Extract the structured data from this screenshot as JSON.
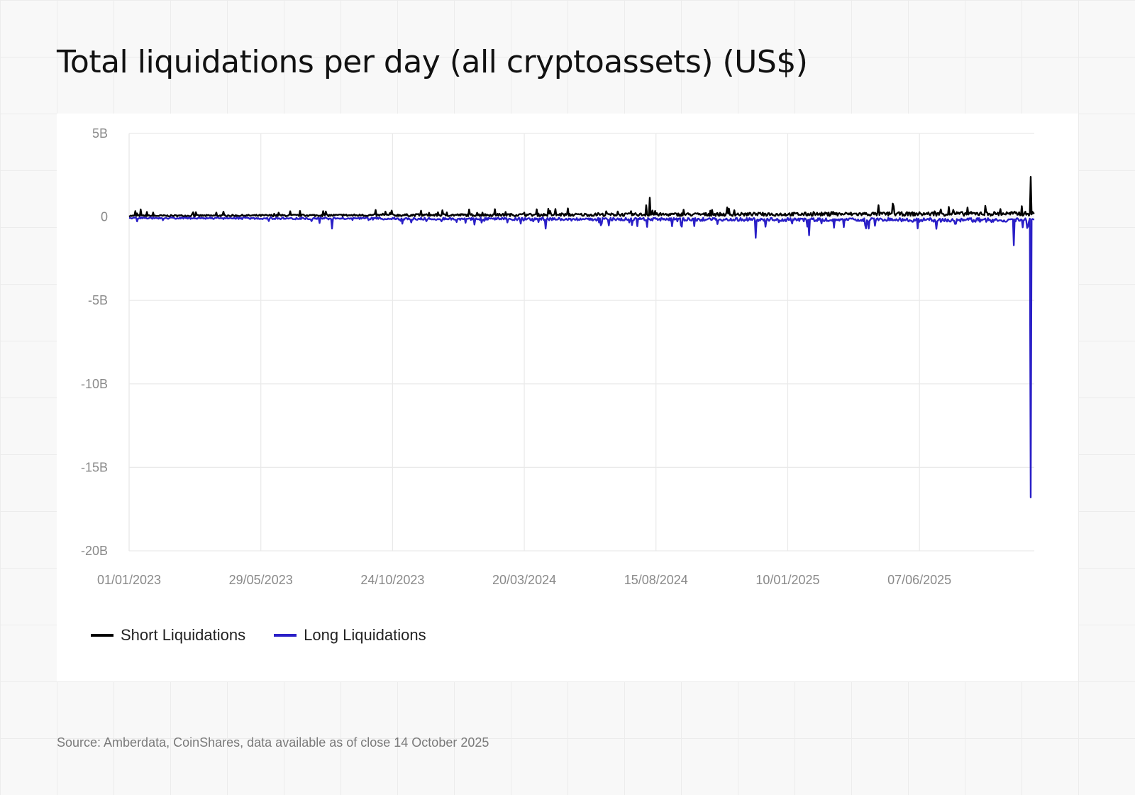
{
  "title": "Total liquidations per day (all cryptoassets) (US$)",
  "source": "Source: Amberdata, CoinShares, data available as of close 14 October 2025",
  "chart_data": {
    "type": "line",
    "title": "Total liquidations per day (all cryptoassets) (US$)",
    "xlabel": "",
    "ylabel": "",
    "x_range": [
      "01/01/2023",
      "14/10/2025"
    ],
    "ylim": [
      -20000000000,
      5000000000
    ],
    "y_ticks": [
      {
        "value": 5000000000,
        "label": "5B"
      },
      {
        "value": 0,
        "label": "0"
      },
      {
        "value": -5000000000,
        "label": "-5B"
      },
      {
        "value": -10000000000,
        "label": "-10B"
      },
      {
        "value": -15000000000,
        "label": "-15B"
      },
      {
        "value": -20000000000,
        "label": "-20B"
      }
    ],
    "x_ticks": [
      "01/01/2023",
      "29/05/2023",
      "24/10/2023",
      "20/03/2024",
      "15/08/2024",
      "10/01/2025",
      "07/06/2025"
    ],
    "grid": true,
    "legend_position": "bottom-left",
    "series": [
      {
        "name": "Short Liquidations",
        "color": "#000000",
        "baseline": 100000000,
        "spikes": [
          {
            "date": "08/01/2023",
            "value": 350000000
          },
          {
            "date": "14/01/2023",
            "value": 450000000
          },
          {
            "date": "21/01/2023",
            "value": 300000000
          },
          {
            "date": "14/03/2023",
            "value": 280000000
          },
          {
            "date": "23/10/2023",
            "value": 380000000
          },
          {
            "date": "04/12/2023",
            "value": 250000000
          },
          {
            "date": "28/02/2024",
            "value": 300000000
          },
          {
            "date": "04/08/2024",
            "value": 700000000
          },
          {
            "date": "08/08/2024",
            "value": 1150000000
          },
          {
            "date": "11/11/2024",
            "value": 400000000
          },
          {
            "date": "22/04/2025",
            "value": 700000000
          },
          {
            "date": "08/05/2025",
            "value": 800000000
          },
          {
            "date": "10/07/2025",
            "value": 600000000
          },
          {
            "date": "10/10/2025",
            "value": 2400000000
          }
        ]
      },
      {
        "name": "Long Liquidations",
        "color": "#2a1fc7",
        "baseline": -100000000,
        "spikes": [
          {
            "date": "17/08/2023",
            "value": -700000000
          },
          {
            "date": "14/01/2024",
            "value": -350000000
          },
          {
            "date": "13/04/2024",
            "value": -700000000
          },
          {
            "date": "05/08/2024",
            "value": -600000000
          },
          {
            "date": "05/12/2024",
            "value": -1250000000
          },
          {
            "date": "03/02/2025",
            "value": -1100000000
          },
          {
            "date": "07/04/2025",
            "value": -500000000
          },
          {
            "date": "21/09/2025",
            "value": -1700000000
          },
          {
            "date": "10/10/2025",
            "value": -16800000000
          }
        ]
      }
    ]
  }
}
